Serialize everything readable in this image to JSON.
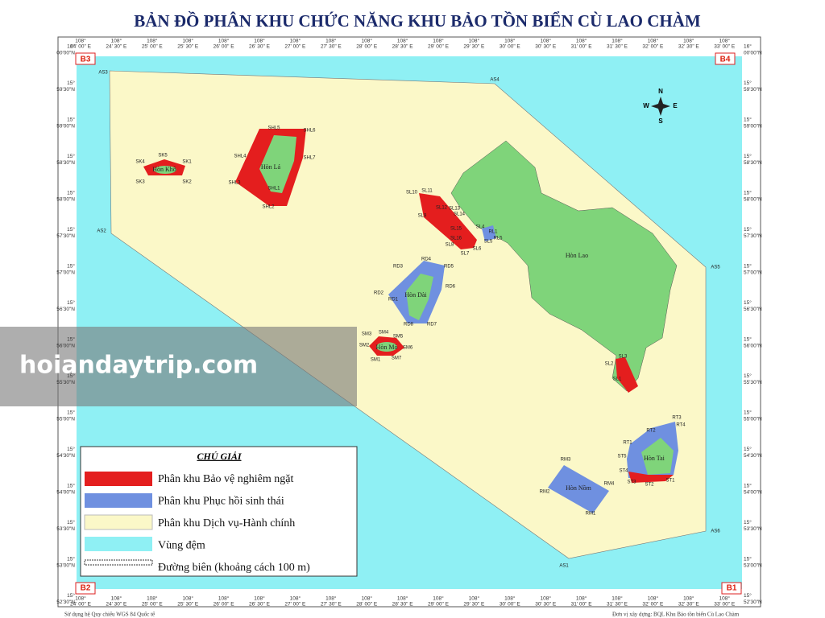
{
  "title": "BẢN ĐỒ PHÂN KHU CHỨC NĂNG KHU BẢO TỒN BIỂN CÙ LAO CHÀM",
  "longitude": {
    "degree": "108°",
    "minutes": [
      "24' 00\" E",
      "24' 30\" E",
      "25' 00\" E",
      "25' 30\" E",
      "26' 00\" E",
      "26' 30\" E",
      "27' 00\" E",
      "27' 30\" E",
      "28' 00\" E",
      "28' 30\" E",
      "29' 00\" E",
      "29' 30\" E",
      "30' 00\" E",
      "30' 30\" E",
      "31' 00\" E",
      "31' 30\" E",
      "32' 00\" E",
      "32' 30\" E",
      "33' 00\" E"
    ]
  },
  "latitude": [
    {
      "degree": "16°",
      "minutes": "00'00\"N"
    },
    {
      "degree": "15°",
      "minutes": "59'30\"N"
    },
    {
      "degree": "15°",
      "minutes": "59'00\"N"
    },
    {
      "degree": "15°",
      "minutes": "58'30\"N"
    },
    {
      "degree": "15°",
      "minutes": "58'00\"N"
    },
    {
      "degree": "15°",
      "minutes": "57'30\"N"
    },
    {
      "degree": "15°",
      "minutes": "57'00\"N"
    },
    {
      "degree": "15°",
      "minutes": "56'30\"N"
    },
    {
      "degree": "15°",
      "minutes": "56'00\"N"
    },
    {
      "degree": "15°",
      "minutes": "55'30\"N"
    },
    {
      "degree": "15°",
      "minutes": "55'00\"N"
    },
    {
      "degree": "15°",
      "minutes": "54'30\"N"
    },
    {
      "degree": "15°",
      "minutes": "54'00\"N"
    },
    {
      "degree": "15°",
      "minutes": "53'30\"N"
    },
    {
      "degree": "15°",
      "minutes": "53'00\"N"
    },
    {
      "degree": "15°",
      "minutes": "52'30\"N"
    }
  ],
  "corners": [
    "B3",
    "B4",
    "B2",
    "B1"
  ],
  "boundary_points": [
    "AS3",
    "AS4",
    "AS5",
    "AS6",
    "AS1",
    "AS2"
  ],
  "islands": [
    "Hòn Lao",
    "Hòn Lá",
    "Hòn Khô",
    "Hòn Dài",
    "Hòn Mò",
    "Hòn Tai",
    "Hòn Nồm"
  ],
  "zone_points": [
    "SK4",
    "SK5",
    "SK1",
    "SK3",
    "SK2",
    "SHL5",
    "SHL6",
    "SHL4",
    "SHL7",
    "SHL3",
    "SHL2",
    "SHL1",
    "SL10",
    "SL11",
    "SL9",
    "SL12",
    "SL13",
    "SL14",
    "SL15",
    "SL16",
    "SL8",
    "SL7",
    "SL6",
    "SL5",
    "SL4",
    "RL1",
    "RL5",
    "RD3",
    "RD4",
    "RD5",
    "RD6",
    "RD2",
    "RD1",
    "RD8",
    "RD7",
    "SM3",
    "SM4",
    "SM5",
    "SM2",
    "SM6",
    "SM1",
    "SM7",
    "SL3",
    "SL2",
    "SL1",
    "RT3",
    "RT4",
    "RT1",
    "RT2",
    "ST5",
    "ST4",
    "ST3",
    "ST2",
    "ST1",
    "RM3",
    "RM4",
    "RM2",
    "RM1"
  ],
  "compass": [
    "N",
    "E",
    "S",
    "W"
  ],
  "legend": {
    "title": "CHÚ GIẢI",
    "items": [
      "Phân khu Bảo vệ nghiêm ngặt",
      "Phân khu Phục hồi sinh thái",
      "Phân khu Dịch vụ-Hành chính",
      "Vùng đệm",
      "Đường biên (khoảng cách 100 m)"
    ]
  },
  "watermark": "hoiandaytrip.com",
  "footer": {
    "left": "Sử dụng hệ Quy chiếu WGS 84 Quốc tế",
    "right": "Đơn vị xây dựng: BQL Khu Bảo tồn biển Cù Lao Chàm"
  }
}
